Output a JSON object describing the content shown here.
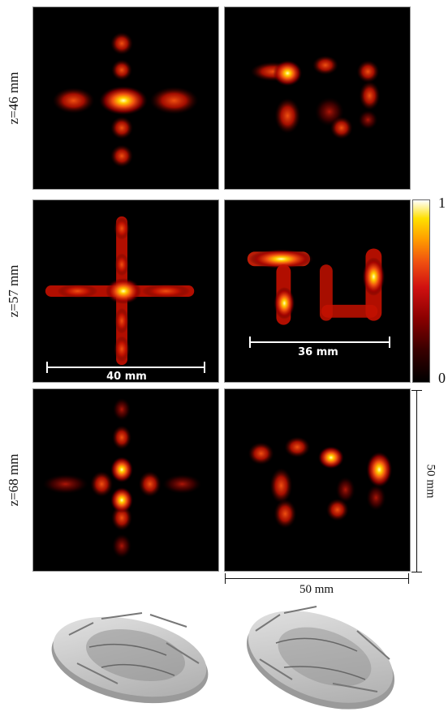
{
  "rows": [
    {
      "label": "z=46 mm"
    },
    {
      "label": "z=57 mm"
    },
    {
      "label": "z=68 mm"
    }
  ],
  "scalebars": {
    "cross": "40 mm",
    "tu": "36 mm"
  },
  "colorbar": {
    "max": "1",
    "min": "0"
  },
  "dimensions": {
    "vertical": "50 mm",
    "horizontal": "50 mm"
  }
}
